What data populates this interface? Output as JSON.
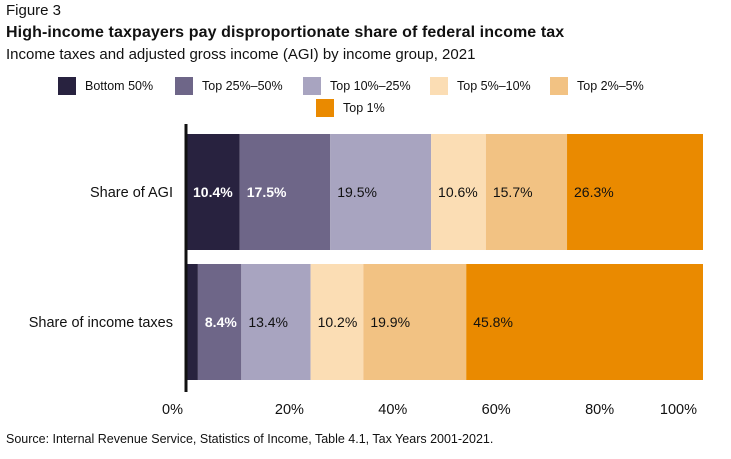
{
  "figure_label": "Figure 3",
  "source": "Source: Internal Revenue Service, Statistics of Income, Table 4.1, Tax Years 2001-2021.",
  "chart_data": {
    "type": "bar",
    "orientation": "horizontal",
    "stacked": true,
    "title": "High-income taxpayers pay disproportionate share of federal income tax",
    "subtitle": "Income taxes and adjusted gross income (AGI) by income group, 2021",
    "xlabel": "",
    "ylabel": "",
    "xlim": [
      0,
      100
    ],
    "x_ticks": [
      "0%",
      "20%",
      "40%",
      "60%",
      "80%",
      "100%"
    ],
    "grid": false,
    "legend_position": "top",
    "categories": [
      "Share of AGI",
      "Share of income taxes"
    ],
    "series": [
      {
        "name": "Bottom 50%",
        "color": "#28223f",
        "values": [
          10.4,
          2.3
        ],
        "labels": [
          "10.4%",
          ""
        ],
        "label_color": "#ffffff"
      },
      {
        "name": "Top 25%–50%",
        "color": "#6e6688",
        "values": [
          17.5,
          8.4
        ],
        "labels": [
          "17.5%",
          "8.4%"
        ],
        "label_color": "#ffffff"
      },
      {
        "name": "Top 10%–25%",
        "color": "#a8a4c0",
        "values": [
          19.5,
          13.4
        ],
        "labels": [
          "19.5%",
          "13.4%"
        ],
        "label_color": "#111111"
      },
      {
        "name": "Top 5%–10%",
        "color": "#fbddb4",
        "values": [
          10.6,
          10.2
        ],
        "labels": [
          "10.6%",
          "10.2%"
        ],
        "label_color": "#111111"
      },
      {
        "name": "Top 2%–5%",
        "color": "#f2c283",
        "values": [
          15.7,
          19.9
        ],
        "labels": [
          "15.7%",
          "19.9%"
        ],
        "label_color": "#111111"
      },
      {
        "name": "Top 1%",
        "color": "#ea8a00",
        "values": [
          26.3,
          45.8
        ],
        "labels": [
          "26.3%",
          "45.8%"
        ],
        "label_color": "#111111"
      }
    ]
  }
}
